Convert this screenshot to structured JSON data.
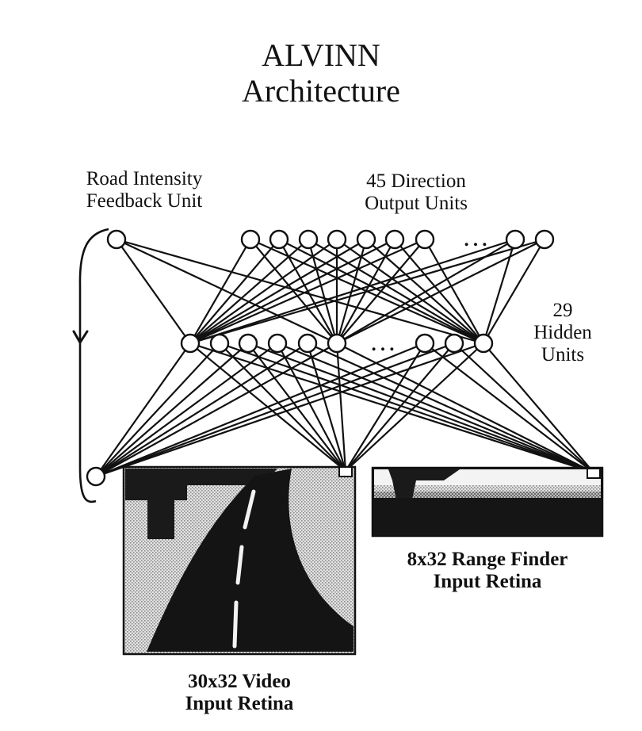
{
  "title": {
    "line1": "ALVINN",
    "line2": "Architecture"
  },
  "feedback_label": {
    "line1": "Road Intensity",
    "line2": "Feedback Unit"
  },
  "output_label": {
    "line1": "45 Direction",
    "line2": "Output Units"
  },
  "hidden_label": {
    "line1": "29",
    "line2": "Hidden",
    "line3": "Units"
  },
  "video_label": {
    "line1": "30x32 Video",
    "line2": "Input Retina"
  },
  "range_label": {
    "line1": "8x32 Range Finder",
    "line2": "Input Retina"
  },
  "ellipsis": "…",
  "colors": {
    "ink": "#111111",
    "road": "#141414",
    "shade_light": "#d6d6d6",
    "shade_dark": "#9a9a9a"
  }
}
